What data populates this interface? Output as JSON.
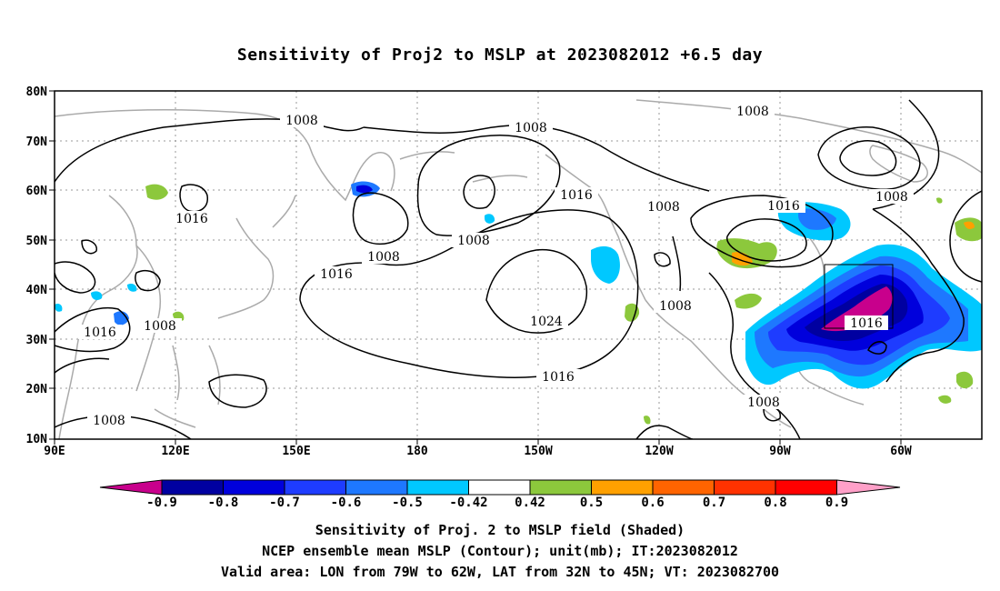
{
  "title": "Sensitivity of Proj2 to MSLP at 2023082012 +6.5 day",
  "map": {
    "lat_ticks": [
      "80N",
      "70N",
      "60N",
      "50N",
      "40N",
      "30N",
      "20N",
      "10N"
    ],
    "lon_ticks": [
      "90E",
      "120E",
      "150E",
      "180",
      "150W",
      "120W",
      "90W",
      "60W"
    ],
    "contour_labels": [
      "1008",
      "1008",
      "1008",
      "1008",
      "1008",
      "1016",
      "1016",
      "1016",
      "1016",
      "1016",
      "1024",
      "1008",
      "1016",
      "1008",
      "1008",
      "1008",
      "1008",
      "1016",
      "1008"
    ]
  },
  "colorbar": {
    "labels": [
      "-0.9",
      "-0.8",
      "-0.7",
      "-0.6",
      "-0.5",
      "-0.42",
      "0.42",
      "0.5",
      "0.6",
      "0.7",
      "0.8",
      "0.9"
    ],
    "colors": [
      "#c8008c",
      "#0000a0",
      "#0000dc",
      "#1e3cff",
      "#1e78ff",
      "#00c8ff",
      "#ffffff",
      "#8cc83c",
      "#ffa000",
      "#ff6400",
      "#ff3200",
      "#ff0000",
      "#ffa0c8"
    ]
  },
  "captions": {
    "line1": "Sensitivity of Proj. 2 to MSLP field (Shaded)",
    "line2": "NCEP ensemble mean MSLP (Contour); unit(mb); IT:2023082012",
    "line3": "Valid area: LON from 79W to 62W, LAT from 32N to 45N; VT: 2023082700"
  }
}
